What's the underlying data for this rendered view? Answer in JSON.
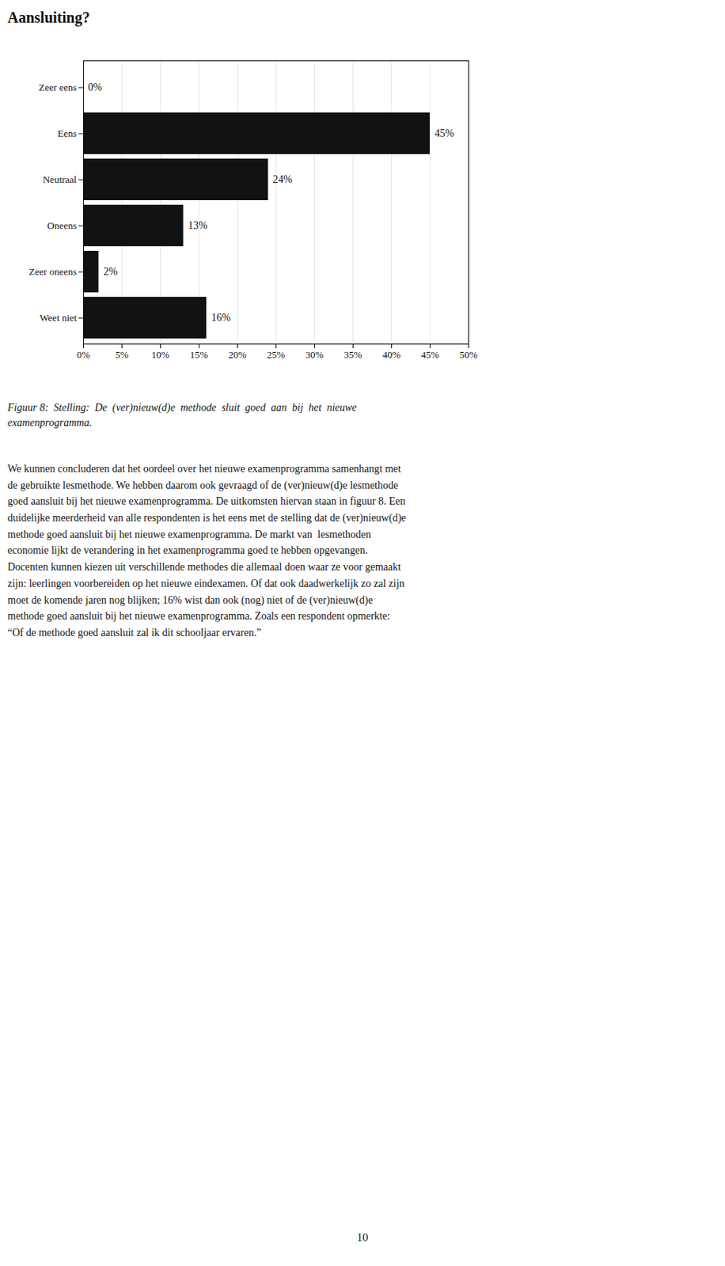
{
  "chart_data": {
    "type": "bar",
    "title": "Aansluiting?",
    "orientation": "horizontal",
    "categories": [
      "Zeer eens",
      "Eens",
      "Neutraal",
      "Oneens",
      "Zeer oneens",
      "Weet niet"
    ],
    "values": [
      0,
      45,
      24,
      13,
      2,
      16
    ],
    "value_labels": [
      "0%",
      "45%",
      "24%",
      "13%",
      "2%",
      "16%"
    ],
    "data_labels": true,
    "xlim": [
      0,
      50
    ],
    "xticks": [
      {
        "value": 0,
        "label": "0%"
      },
      {
        "value": 5,
        "label": "5%"
      },
      {
        "value": 10,
        "label": "10%"
      },
      {
        "value": 15,
        "label": "15%"
      },
      {
        "value": 20,
        "label": "20%"
      },
      {
        "value": 25,
        "label": "25%"
      },
      {
        "value": 30,
        "label": "30%"
      },
      {
        "value": 35,
        "label": "35%"
      },
      {
        "value": 40,
        "label": "40%"
      },
      {
        "value": 45,
        "label": "45%"
      },
      {
        "value": 50,
        "label": "50%"
      }
    ],
    "grid": true
  },
  "caption": [
    "Figuur 8:  Stelling:  De  (ver)nieuw(d)e  methode  sluit  goed  aan  bij  het  nieuwe",
    "examenprogramma."
  ],
  "body_text": [
    "We kunnen concluderen dat het oordeel over het nieuwe examenprogramma samenhangt met",
    "de gebruikte lesmethode. We hebben daarom ook gevraagd of de (ver)nieuw(d)e lesmethode",
    "goed aansluit bij het nieuwe examenprogramma. De uitkomsten hiervan staan in figuur 8. Een",
    "duidelijke meerderheid van alle respondenten is het eens met de stelling dat de (ver)nieuw(d)e",
    "methode goed aansluit bij het nieuwe examenprogramma. De markt van  lesmethoden",
    "economie lijkt de verandering in het examenprogramma goed te hebben opgevangen.",
    "Docenten kunnen kiezen uit verschillende methodes die allemaal doen waar ze voor gemaakt",
    "zijn: leerlingen voorbereiden op het nieuwe eindexamen. Of dat ook daadwerkelijk zo zal zijn",
    "moet de komende jaren nog blijken; 16% wist dan ook (nog) niet of de (ver)nieuw(d)e",
    "methode goed aansluit bij het nieuwe examenprogramma. Zoals een respondent opmerkte:",
    "“Of de methode goed aansluit zal ik dit schooljaar ervaren.”"
  ],
  "page_number": "10"
}
